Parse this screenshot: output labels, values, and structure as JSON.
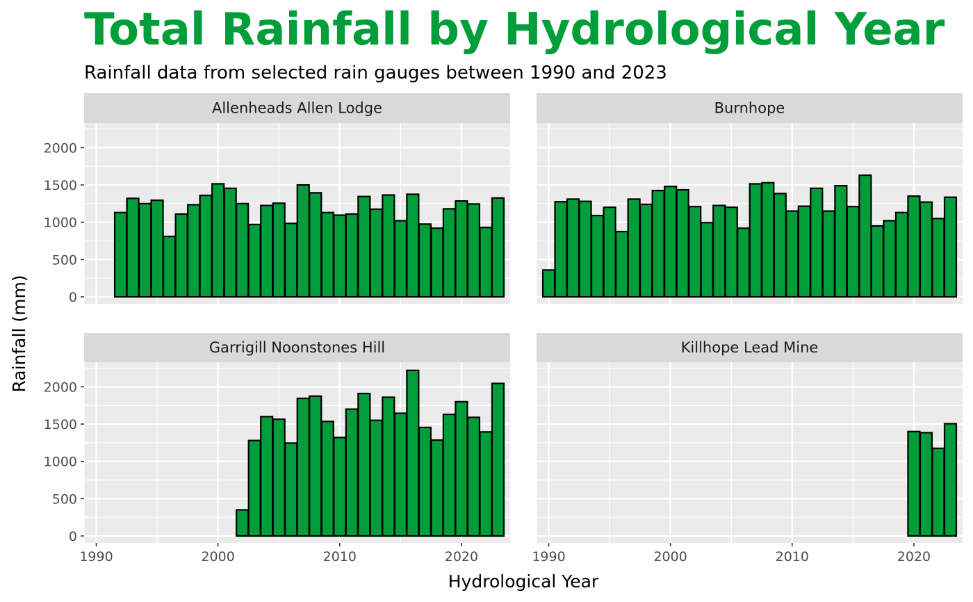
{
  "chart_data": {
    "type": "bar",
    "title": "Total Rainfall by Hydrological Year",
    "subtitle": "Rainfall data from selected rain gauges between 1990 and 2023",
    "xlabel": "Hydrological Year",
    "ylabel": "Rainfall (mm)",
    "xlim": [
      1989,
      2024
    ],
    "ylim": [
      0,
      2330
    ],
    "x_ticks": [
      1990,
      2000,
      2010,
      2020
    ],
    "y_ticks": [
      0,
      500,
      1000,
      1500,
      2000
    ],
    "grid": true,
    "bar_color": "#009E3A",
    "bar_outline": "#000000",
    "panel_background": "#EBEBEB",
    "strip_background": "#D9D9D9",
    "title_color": "#009E3A",
    "panels": [
      {
        "name": "Allenheads Allen Lodge",
        "x": [
          1992,
          1993,
          1994,
          1995,
          1996,
          1997,
          1998,
          1999,
          2000,
          2001,
          2002,
          2003,
          2004,
          2005,
          2006,
          2007,
          2008,
          2009,
          2010,
          2011,
          2012,
          2013,
          2014,
          2015,
          2016,
          2017,
          2018,
          2019,
          2020,
          2021,
          2022,
          2023
        ],
        "values": [
          1130,
          1320,
          1250,
          1295,
          810,
          1110,
          1235,
          1360,
          1515,
          1455,
          1250,
          970,
          1225,
          1255,
          985,
          1500,
          1395,
          1130,
          1095,
          1110,
          1345,
          1175,
          1365,
          1020,
          1375,
          975,
          920,
          1180,
          1285,
          1245,
          930,
          1325
        ]
      },
      {
        "name": "Burnhope",
        "x": [
          1990,
          1991,
          1992,
          1993,
          1994,
          1995,
          1996,
          1997,
          1998,
          1999,
          2000,
          2001,
          2002,
          2003,
          2004,
          2005,
          2006,
          2007,
          2008,
          2009,
          2010,
          2011,
          2012,
          2013,
          2014,
          2015,
          2016,
          2017,
          2018,
          2019,
          2020,
          2021,
          2022,
          2023
        ],
        "values": [
          360,
          1275,
          1310,
          1280,
          1090,
          1200,
          875,
          1310,
          1240,
          1425,
          1480,
          1435,
          1210,
          995,
          1225,
          1200,
          920,
          1515,
          1530,
          1385,
          1150,
          1215,
          1455,
          1150,
          1490,
          1210,
          1630,
          950,
          1020,
          1130,
          1350,
          1270,
          1050,
          1335
        ]
      },
      {
        "name": "Garrigill Noonstones Hill",
        "x": [
          2002,
          2003,
          2004,
          2005,
          2006,
          2007,
          2008,
          2009,
          2010,
          2011,
          2012,
          2013,
          2014,
          2015,
          2016,
          2017,
          2018,
          2019,
          2020,
          2021,
          2022,
          2023
        ],
        "values": [
          350,
          1280,
          1600,
          1565,
          1245,
          1845,
          1875,
          1535,
          1320,
          1700,
          1910,
          1550,
          1860,
          1645,
          2220,
          1455,
          1285,
          1630,
          1800,
          1590,
          1395,
          2045
        ]
      },
      {
        "name": "Killhope Lead Mine",
        "x": [
          2020,
          2021,
          2022,
          2023
        ],
        "values": [
          1400,
          1385,
          1175,
          1505
        ]
      }
    ]
  }
}
